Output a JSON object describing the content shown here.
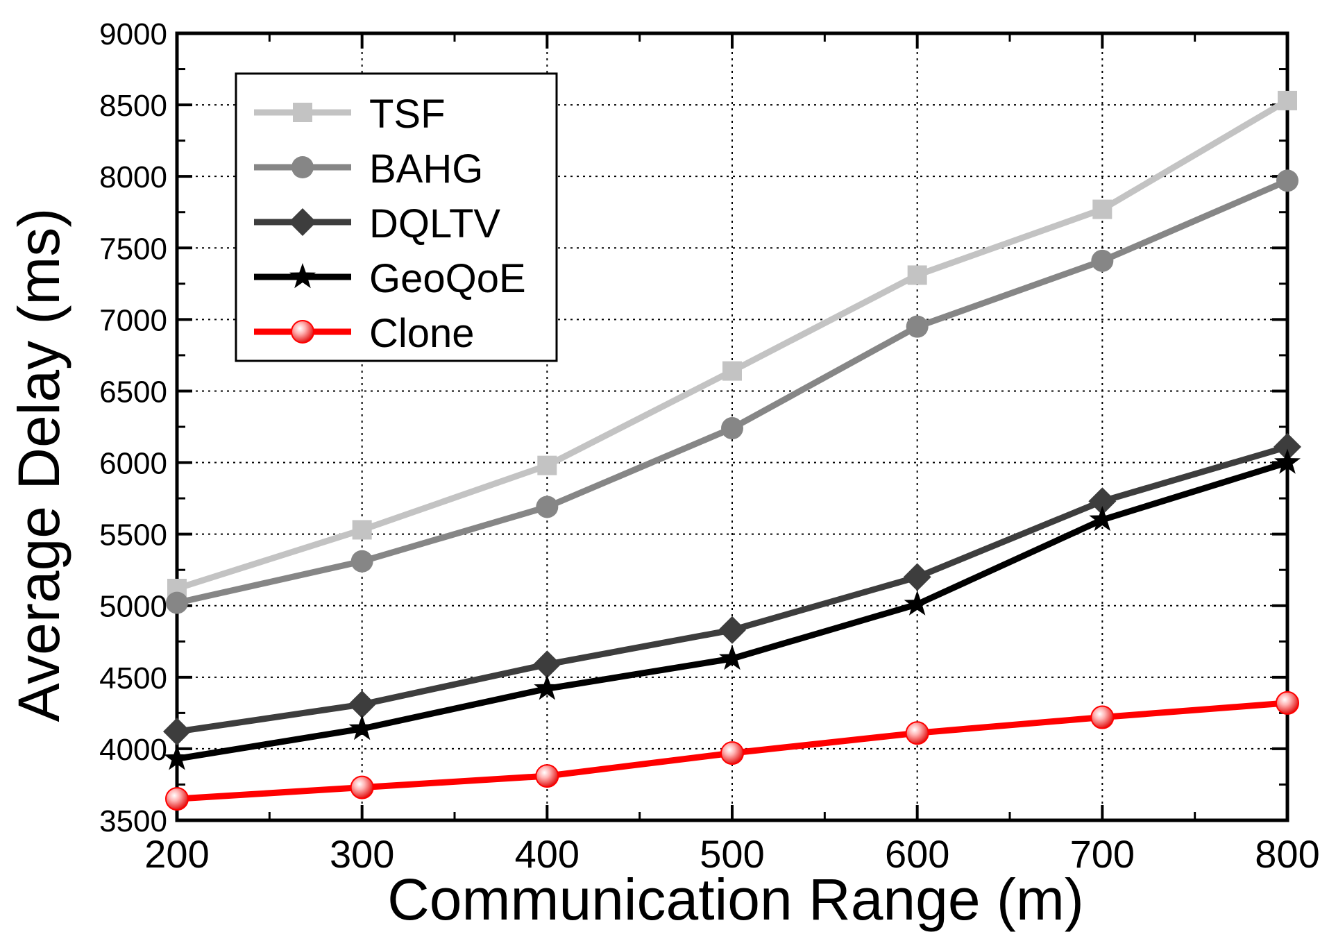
{
  "chart_data": {
    "type": "line",
    "title": "",
    "xlabel": "Communication Range (m)",
    "ylabel": "Average Delay (ms)",
    "xlim": [
      200,
      800
    ],
    "ylim": [
      3500,
      9000
    ],
    "xticks": [
      200,
      300,
      400,
      500,
      600,
      700,
      800
    ],
    "yticks": [
      3500,
      4000,
      4500,
      5000,
      5500,
      6000,
      6500,
      7000,
      7500,
      8000,
      8500,
      9000
    ],
    "grid": true,
    "legend_position": "top-left",
    "x": [
      200,
      300,
      400,
      500,
      600,
      700,
      800
    ],
    "series": [
      {
        "name": "TSF",
        "marker": "square",
        "color": "#c3c3c3",
        "values": [
          5120,
          5530,
          5980,
          6640,
          7310,
          7770,
          8530
        ]
      },
      {
        "name": "BAHG",
        "marker": "circle",
        "color": "#868686",
        "values": [
          5020,
          5310,
          5690,
          6240,
          6950,
          7410,
          7970
        ]
      },
      {
        "name": "DQLTV",
        "marker": "diamond",
        "color": "#3d3d3d",
        "values": [
          4120,
          4310,
          4590,
          4830,
          5200,
          5730,
          6110
        ]
      },
      {
        "name": "GeoQoE",
        "marker": "star",
        "color": "#000000",
        "values": [
          3930,
          4140,
          4420,
          4630,
          5010,
          5600,
          6000
        ]
      },
      {
        "name": "Clone",
        "marker": "sphere",
        "color": "#ff0000",
        "values": [
          3650,
          3730,
          3810,
          3970,
          4110,
          4220,
          4320
        ]
      }
    ]
  }
}
